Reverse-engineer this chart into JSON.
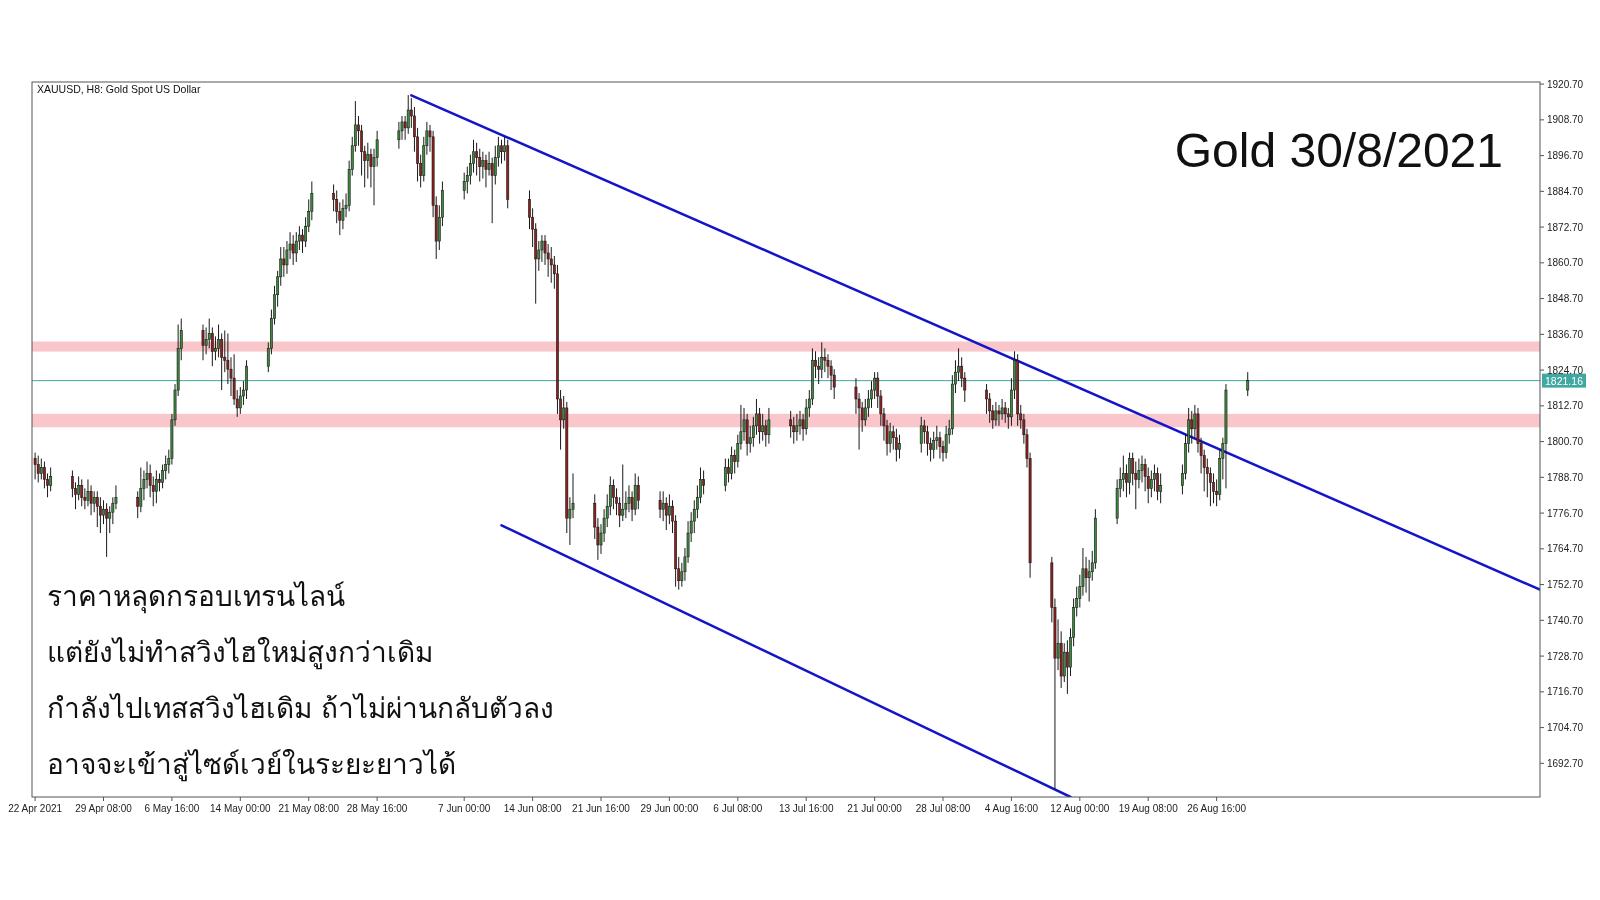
{
  "chart_data": {
    "type": "candlestick",
    "title": "Gold 30/8/2021",
    "subtitle": "XAUUSD, H8:  Gold Spot US Dollar",
    "annotations": [
      "ราคาหลุดกรอบเทรนไลน์",
      "แต่ยังไม่ทำสวิงไฮใหม่สูงกว่าเดิม",
      "กำลังไปเทสสวิงไฮเดิม ถ้าไม่ผ่านกลับตัวลง",
      "อาจจะเข้าสู่ไซด์เวย์ในระยะยาวได้"
    ],
    "x": [
      "2021-04-22T00:00",
      "2021-04-22T08:00",
      "2021-04-22T16:00",
      "2021-04-23T00:00",
      "2021-04-23T08:00",
      "2021-04-23T16:00",
      "2021-04-26T00:00",
      "2021-04-26T08:00",
      "2021-04-26T16:00",
      "2021-04-27T00:00",
      "2021-04-27T08:00",
      "2021-04-27T16:00",
      "2021-04-28T00:00",
      "2021-04-28T08:00",
      "2021-04-28T16:00",
      "2021-04-29T00:00",
      "2021-04-29T08:00",
      "2021-04-29T16:00",
      "2021-04-30T00:00",
      "2021-04-30T08:00",
      "2021-04-30T16:00",
      "2021-05-03T00:00",
      "2021-05-03T08:00",
      "2021-05-03T16:00",
      "2021-05-04T00:00",
      "2021-05-04T08:00",
      "2021-05-04T16:00",
      "2021-05-05T00:00",
      "2021-05-05T08:00",
      "2021-05-05T16:00",
      "2021-05-06T00:00",
      "2021-05-06T08:00",
      "2021-05-06T16:00",
      "2021-05-07T00:00",
      "2021-05-07T08:00",
      "2021-05-07T16:00",
      "2021-05-10T00:00",
      "2021-05-10T08:00",
      "2021-05-10T16:00",
      "2021-05-11T00:00",
      "2021-05-11T08:00",
      "2021-05-11T16:00",
      "2021-05-12T00:00",
      "2021-05-12T08:00",
      "2021-05-12T16:00",
      "2021-05-13T00:00",
      "2021-05-13T08:00",
      "2021-05-13T16:00",
      "2021-05-14T00:00",
      "2021-05-14T08:00",
      "2021-05-14T16:00",
      "2021-05-17T00:00",
      "2021-05-17T08:00",
      "2021-05-17T16:00",
      "2021-05-18T00:00",
      "2021-05-18T08:00",
      "2021-05-18T16:00",
      "2021-05-19T00:00",
      "2021-05-19T08:00",
      "2021-05-19T16:00",
      "2021-05-20T00:00",
      "2021-05-20T08:00",
      "2021-05-20T16:00",
      "2021-05-21T00:00",
      "2021-05-21T08:00",
      "2021-05-21T16:00",
      "2021-05-24T00:00",
      "2021-05-24T08:00",
      "2021-05-24T16:00",
      "2021-05-25T00:00",
      "2021-05-25T08:00",
      "2021-05-25T16:00",
      "2021-05-26T00:00",
      "2021-05-26T08:00",
      "2021-05-26T16:00",
      "2021-05-27T00:00",
      "2021-05-27T08:00",
      "2021-05-27T16:00",
      "2021-05-28T00:00",
      "2021-05-28T08:00",
      "2021-05-28T16:00",
      "2021-05-31T00:00",
      "2021-05-31T08:00",
      "2021-05-31T16:00",
      "2021-06-01T00:00",
      "2021-06-01T08:00",
      "2021-06-01T16:00",
      "2021-06-02T00:00",
      "2021-06-02T08:00",
      "2021-06-02T16:00",
      "2021-06-03T00:00",
      "2021-06-03T08:00",
      "2021-06-03T16:00",
      "2021-06-04T00:00",
      "2021-06-04T08:00",
      "2021-06-04T16:00",
      "2021-06-07T00:00",
      "2021-06-07T08:00",
      "2021-06-07T16:00",
      "2021-06-08T00:00",
      "2021-06-08T08:00",
      "2021-06-08T16:00",
      "2021-06-09T00:00",
      "2021-06-09T08:00",
      "2021-06-09T16:00",
      "2021-06-10T00:00",
      "2021-06-10T08:00",
      "2021-06-10T16:00",
      "2021-06-11T00:00",
      "2021-06-11T08:00",
      "2021-06-11T16:00",
      "2021-06-14T00:00",
      "2021-06-14T08:00",
      "2021-06-14T16:00",
      "2021-06-15T00:00",
      "2021-06-15T08:00",
      "2021-06-15T16:00",
      "2021-06-16T00:00",
      "2021-06-16T08:00",
      "2021-06-16T16:00",
      "2021-06-17T00:00",
      "2021-06-17T08:00",
      "2021-06-17T16:00",
      "2021-06-18T00:00",
      "2021-06-18T08:00",
      "2021-06-18T16:00",
      "2021-06-21T00:00",
      "2021-06-21T08:00",
      "2021-06-21T16:00",
      "2021-06-22T00:00",
      "2021-06-22T08:00",
      "2021-06-22T16:00",
      "2021-06-23T00:00",
      "2021-06-23T08:00",
      "2021-06-23T16:00",
      "2021-06-24T00:00",
      "2021-06-24T08:00",
      "2021-06-24T16:00",
      "2021-06-25T00:00",
      "2021-06-25T08:00",
      "2021-06-25T16:00",
      "2021-06-28T00:00",
      "2021-06-28T08:00",
      "2021-06-28T16:00",
      "2021-06-29T00:00",
      "2021-06-29T08:00",
      "2021-06-29T16:00",
      "2021-06-30T00:00",
      "2021-06-30T08:00",
      "2021-06-30T16:00",
      "2021-07-01T00:00",
      "2021-07-01T08:00",
      "2021-07-01T16:00",
      "2021-07-02T00:00",
      "2021-07-02T08:00",
      "2021-07-02T16:00",
      "2021-07-05T00:00",
      "2021-07-05T08:00",
      "2021-07-05T16:00",
      "2021-07-06T00:00",
      "2021-07-06T08:00",
      "2021-07-06T16:00",
      "2021-07-07T00:00",
      "2021-07-07T08:00",
      "2021-07-07T16:00",
      "2021-07-08T00:00",
      "2021-07-08T08:00",
      "2021-07-08T16:00",
      "2021-07-09T00:00",
      "2021-07-09T08:00",
      "2021-07-09T16:00",
      "2021-07-12T00:00",
      "2021-07-12T08:00",
      "2021-07-12T16:00",
      "2021-07-13T00:00",
      "2021-07-13T08:00",
      "2021-07-13T16:00",
      "2021-07-14T00:00",
      "2021-07-14T08:00",
      "2021-07-14T16:00",
      "2021-07-15T00:00",
      "2021-07-15T08:00",
      "2021-07-15T16:00",
      "2021-07-16T00:00",
      "2021-07-16T08:00",
      "2021-07-16T16:00",
      "2021-07-19T00:00",
      "2021-07-19T08:00",
      "2021-07-19T16:00",
      "2021-07-20T00:00",
      "2021-07-20T08:00",
      "2021-07-20T16:00",
      "2021-07-21T00:00",
      "2021-07-21T08:00",
      "2021-07-21T16:00",
      "2021-07-22T00:00",
      "2021-07-22T08:00",
      "2021-07-22T16:00",
      "2021-07-23T00:00",
      "2021-07-23T08:00",
      "2021-07-23T16:00",
      "2021-07-26T00:00",
      "2021-07-26T08:00",
      "2021-07-26T16:00",
      "2021-07-27T00:00",
      "2021-07-27T08:00",
      "2021-07-27T16:00",
      "2021-07-28T00:00",
      "2021-07-28T08:00",
      "2021-07-28T16:00",
      "2021-07-29T00:00",
      "2021-07-29T08:00",
      "2021-07-29T16:00",
      "2021-07-30T00:00",
      "2021-07-30T08:00",
      "2021-07-30T16:00",
      "2021-08-02T00:00",
      "2021-08-02T08:00",
      "2021-08-02T16:00",
      "2021-08-03T00:00",
      "2021-08-03T08:00",
      "2021-08-03T16:00",
      "2021-08-04T00:00",
      "2021-08-04T08:00",
      "2021-08-04T16:00",
      "2021-08-05T00:00",
      "2021-08-05T08:00",
      "2021-08-05T16:00",
      "2021-08-06T00:00",
      "2021-08-06T08:00",
      "2021-08-06T16:00",
      "2021-08-09T00:00",
      "2021-08-09T08:00",
      "2021-08-09T16:00",
      "2021-08-10T00:00",
      "2021-08-10T08:00",
      "2021-08-10T16:00",
      "2021-08-11T00:00",
      "2021-08-11T08:00",
      "2021-08-11T16:00",
      "2021-08-12T00:00",
      "2021-08-12T08:00",
      "2021-08-12T16:00",
      "2021-08-13T00:00",
      "2021-08-13T08:00",
      "2021-08-13T16:00",
      "2021-08-16T00:00",
      "2021-08-16T08:00",
      "2021-08-16T16:00",
      "2021-08-17T00:00",
      "2021-08-17T08:00",
      "2021-08-17T16:00",
      "2021-08-18T00:00",
      "2021-08-18T08:00",
      "2021-08-18T16:00",
      "2021-08-19T00:00",
      "2021-08-19T08:00",
      "2021-08-19T16:00",
      "2021-08-20T00:00",
      "2021-08-20T08:00",
      "2021-08-20T16:00",
      "2021-08-23T00:00",
      "2021-08-23T08:00",
      "2021-08-23T16:00",
      "2021-08-24T00:00",
      "2021-08-24T08:00",
      "2021-08-24T16:00",
      "2021-08-25T00:00",
      "2021-08-25T08:00",
      "2021-08-25T16:00",
      "2021-08-26T00:00",
      "2021-08-26T08:00",
      "2021-08-26T16:00",
      "2021-08-27T00:00",
      "2021-08-27T08:00",
      "2021-08-27T16:00",
      "2021-08-30T00:00"
    ],
    "ohlc": [
      [
        1795,
        1797,
        1788,
        1793
      ],
      [
        1793,
        1796,
        1787,
        1790
      ],
      [
        1790,
        1795,
        1788,
        1792
      ],
      [
        1792,
        1794,
        1785,
        1788
      ],
      [
        1788,
        1790,
        1782,
        1786
      ],
      [
        1786,
        1792,
        1784,
        1789
      ],
      [
        1789,
        1791,
        1782,
        1785
      ],
      [
        1785,
        1787,
        1778,
        1783
      ],
      [
        1783,
        1789,
        1781,
        1786
      ],
      [
        1786,
        1788,
        1779,
        1782
      ],
      [
        1782,
        1785,
        1778,
        1781
      ],
      [
        1781,
        1788,
        1779,
        1784
      ],
      [
        1784,
        1786,
        1776,
        1780
      ],
      [
        1780,
        1784,
        1777,
        1782
      ],
      [
        1782,
        1784,
        1772,
        1779
      ],
      [
        1779,
        1782,
        1770,
        1776
      ],
      [
        1776,
        1781,
        1773,
        1778
      ],
      [
        1778,
        1780,
        1762,
        1775
      ],
      [
        1775,
        1779,
        1770,
        1777
      ],
      [
        1777,
        1782,
        1773,
        1780
      ],
      [
        1780,
        1786,
        1778,
        1782
      ],
      [
        1782,
        1784,
        1775,
        1779
      ],
      [
        1779,
        1792,
        1777,
        1785
      ],
      [
        1785,
        1791,
        1781,
        1788
      ],
      [
        1788,
        1794,
        1785,
        1790
      ],
      [
        1790,
        1793,
        1782,
        1786
      ],
      [
        1786,
        1789,
        1779,
        1784
      ],
      [
        1784,
        1791,
        1780,
        1788
      ],
      [
        1788,
        1790,
        1784,
        1787
      ],
      [
        1787,
        1793,
        1785,
        1791
      ],
      [
        1791,
        1796,
        1788,
        1793
      ],
      [
        1793,
        1798,
        1790,
        1795
      ],
      [
        1795,
        1810,
        1793,
        1808
      ],
      [
        1808,
        1820,
        1806,
        1818
      ],
      [
        1818,
        1840,
        1816,
        1832
      ],
      [
        1832,
        1842,
        1828,
        1838
      ],
      [
        1838,
        1840,
        1828,
        1833
      ],
      [
        1833,
        1839,
        1830,
        1835
      ],
      [
        1835,
        1842,
        1832,
        1837
      ],
      [
        1837,
        1839,
        1826,
        1831
      ],
      [
        1831,
        1836,
        1828,
        1832
      ],
      [
        1832,
        1840,
        1829,
        1835
      ],
      [
        1835,
        1837,
        1818,
        1829
      ],
      [
        1829,
        1838,
        1824,
        1828
      ],
      [
        1828,
        1837,
        1820,
        1825
      ],
      [
        1825,
        1829,
        1816,
        1822
      ],
      [
        1822,
        1830,
        1813,
        1815
      ],
      [
        1815,
        1818,
        1809,
        1812
      ],
      [
        1812,
        1819,
        1810,
        1816
      ],
      [
        1816,
        1821,
        1813,
        1818
      ],
      [
        1818,
        1828,
        1815,
        1826
      ],
      [
        1826,
        1834,
        1824,
        1832
      ],
      [
        1832,
        1845,
        1830,
        1842
      ],
      [
        1842,
        1853,
        1840,
        1850
      ],
      [
        1850,
        1858,
        1846,
        1856
      ],
      [
        1856,
        1866,
        1853,
        1862
      ],
      [
        1862,
        1866,
        1856,
        1860
      ],
      [
        1860,
        1868,
        1857,
        1865
      ],
      [
        1865,
        1871,
        1862,
        1867
      ],
      [
        1867,
        1870,
        1860,
        1864
      ],
      [
        1864,
        1871,
        1861,
        1868
      ],
      [
        1868,
        1873,
        1865,
        1870
      ],
      [
        1870,
        1872,
        1864,
        1868
      ],
      [
        1868,
        1876,
        1866,
        1873
      ],
      [
        1873,
        1882,
        1871,
        1878
      ],
      [
        1878,
        1888,
        1875,
        1884
      ],
      [
        1884,
        1887,
        1878,
        1882
      ],
      [
        1882,
        1885,
        1874,
        1878
      ],
      [
        1878,
        1881,
        1870,
        1875
      ],
      [
        1875,
        1882,
        1872,
        1879
      ],
      [
        1879,
        1884,
        1876,
        1880
      ],
      [
        1880,
        1895,
        1878,
        1892
      ],
      [
        1892,
        1903,
        1890,
        1900
      ],
      [
        1900,
        1915,
        1898,
        1907
      ],
      [
        1907,
        1910,
        1900,
        1905
      ],
      [
        1905,
        1907,
        1890,
        1898
      ],
      [
        1898,
        1900,
        1886,
        1895
      ],
      [
        1895,
        1901,
        1889,
        1897
      ],
      [
        1897,
        1899,
        1886,
        1893
      ],
      [
        1893,
        1899,
        1880,
        1896
      ],
      [
        1896,
        1905,
        1893,
        1902
      ],
      [
        1902,
        1908,
        1899,
        1905
      ],
      [
        1905,
        1910,
        1902,
        1908
      ],
      [
        1908,
        1910,
        1902,
        1906
      ],
      [
        1906,
        1917,
        1904,
        1912
      ],
      [
        1912,
        1916,
        1906,
        1910
      ],
      [
        1910,
        1913,
        1898,
        1903
      ],
      [
        1903,
        1906,
        1888,
        1894
      ],
      [
        1894,
        1897,
        1886,
        1890
      ],
      [
        1890,
        1903,
        1888,
        1900
      ],
      [
        1900,
        1908,
        1897,
        1905
      ],
      [
        1905,
        1907,
        1898,
        1903
      ],
      [
        1903,
        1905,
        1876,
        1880
      ],
      [
        1880,
        1883,
        1862,
        1868
      ],
      [
        1868,
        1880,
        1865,
        1876
      ],
      [
        1876,
        1888,
        1873,
        1885
      ],
      [
        1885,
        1891,
        1882,
        1888
      ],
      [
        1888,
        1893,
        1884,
        1890
      ],
      [
        1890,
        1897,
        1887,
        1894
      ],
      [
        1894,
        1902,
        1891,
        1898
      ],
      [
        1898,
        1901,
        1890,
        1896
      ],
      [
        1896,
        1899,
        1888,
        1893
      ],
      [
        1893,
        1898,
        1889,
        1895
      ],
      [
        1895,
        1897,
        1886,
        1892
      ],
      [
        1892,
        1898,
        1890,
        1894
      ],
      [
        1894,
        1896,
        1874,
        1890
      ],
      [
        1890,
        1900,
        1887,
        1896
      ],
      [
        1896,
        1903,
        1893,
        1900
      ],
      [
        1900,
        1902,
        1894,
        1898
      ],
      [
        1898,
        1903,
        1895,
        1900
      ],
      [
        1900,
        1902,
        1879,
        1882
      ],
      [
        1882,
        1885,
        1872,
        1876
      ],
      [
        1876,
        1879,
        1866,
        1872
      ],
      [
        1872,
        1874,
        1847,
        1862
      ],
      [
        1862,
        1868,
        1858,
        1865
      ],
      [
        1865,
        1870,
        1861,
        1868
      ],
      [
        1868,
        1870,
        1860,
        1864
      ],
      [
        1864,
        1867,
        1856,
        1862
      ],
      [
        1862,
        1866,
        1854,
        1860
      ],
      [
        1860,
        1863,
        1852,
        1857
      ],
      [
        1857,
        1860,
        1810,
        1815
      ],
      [
        1815,
        1818,
        1798,
        1808
      ],
      [
        1808,
        1816,
        1805,
        1812
      ],
      [
        1812,
        1814,
        1770,
        1775
      ],
      [
        1775,
        1782,
        1766,
        1778
      ],
      [
        1778,
        1790,
        1775,
        1780
      ],
      [
        1780,
        1783,
        1768,
        1772
      ],
      [
        1772,
        1775,
        1761,
        1766
      ],
      [
        1766,
        1773,
        1763,
        1770
      ],
      [
        1770,
        1778,
        1767,
        1775
      ],
      [
        1775,
        1783,
        1772,
        1779
      ],
      [
        1779,
        1789,
        1776,
        1786
      ],
      [
        1786,
        1788,
        1778,
        1782
      ],
      [
        1782,
        1785,
        1776,
        1780
      ],
      [
        1780,
        1782,
        1772,
        1776
      ],
      [
        1776,
        1793,
        1774,
        1778
      ],
      [
        1778,
        1784,
        1775,
        1780
      ],
      [
        1780,
        1786,
        1777,
        1782
      ],
      [
        1782,
        1784,
        1774,
        1778
      ],
      [
        1778,
        1790,
        1776,
        1786
      ],
      [
        1786,
        1789,
        1778,
        1781
      ],
      [
        1781,
        1784,
        1775,
        1778
      ],
      [
        1778,
        1784,
        1774,
        1780
      ],
      [
        1780,
        1782,
        1771,
        1776
      ],
      [
        1776,
        1783,
        1773,
        1779
      ],
      [
        1779,
        1781,
        1770,
        1774
      ],
      [
        1774,
        1776,
        1752,
        1758
      ],
      [
        1758,
        1762,
        1751,
        1754
      ],
      [
        1754,
        1760,
        1752,
        1757
      ],
      [
        1757,
        1765,
        1754,
        1762
      ],
      [
        1762,
        1774,
        1760,
        1770
      ],
      [
        1770,
        1777,
        1767,
        1774
      ],
      [
        1774,
        1781,
        1770,
        1778
      ],
      [
        1778,
        1786,
        1775,
        1782
      ],
      [
        1782,
        1792,
        1780,
        1788
      ],
      [
        1788,
        1791,
        1783,
        1786
      ],
      [
        1786,
        1795,
        1784,
        1792
      ],
      [
        1792,
        1795,
        1787,
        1790
      ],
      [
        1790,
        1799,
        1788,
        1796
      ],
      [
        1796,
        1798,
        1790,
        1794
      ],
      [
        1794,
        1803,
        1792,
        1800
      ],
      [
        1800,
        1813,
        1798,
        1804
      ],
      [
        1804,
        1812,
        1801,
        1808
      ],
      [
        1808,
        1810,
        1796,
        1800
      ],
      [
        1800,
        1806,
        1797,
        1802
      ],
      [
        1802,
        1809,
        1799,
        1806
      ],
      [
        1806,
        1815,
        1803,
        1810
      ],
      [
        1810,
        1812,
        1800,
        1804
      ],
      [
        1804,
        1810,
        1801,
        1806
      ],
      [
        1806,
        1808,
        1799,
        1803
      ],
      [
        1803,
        1812,
        1800,
        1808
      ],
      [
        1808,
        1811,
        1802,
        1806
      ],
      [
        1806,
        1809,
        1800,
        1804
      ],
      [
        1804,
        1810,
        1801,
        1806
      ],
      [
        1806,
        1811,
        1803,
        1808
      ],
      [
        1808,
        1810,
        1801,
        1805
      ],
      [
        1805,
        1815,
        1803,
        1812
      ],
      [
        1812,
        1818,
        1809,
        1815
      ],
      [
        1815,
        1832,
        1813,
        1828
      ],
      [
        1828,
        1831,
        1822,
        1826
      ],
      [
        1826,
        1829,
        1820,
        1825
      ],
      [
        1825,
        1834,
        1822,
        1829
      ],
      [
        1829,
        1832,
        1824,
        1828
      ],
      [
        1828,
        1830,
        1822,
        1826
      ],
      [
        1826,
        1828,
        1818,
        1823
      ],
      [
        1823,
        1825,
        1815,
        1819
      ],
      [
        1819,
        1822,
        1810,
        1815
      ],
      [
        1815,
        1817,
        1798,
        1812
      ],
      [
        1812,
        1814,
        1804,
        1808
      ],
      [
        1808,
        1815,
        1806,
        1812
      ],
      [
        1812,
        1818,
        1809,
        1815
      ],
      [
        1815,
        1821,
        1812,
        1818
      ],
      [
        1818,
        1824,
        1815,
        1822
      ],
      [
        1822,
        1824,
        1812,
        1816
      ],
      [
        1816,
        1818,
        1806,
        1810
      ],
      [
        1810,
        1812,
        1801,
        1806
      ],
      [
        1806,
        1808,
        1796,
        1800
      ],
      [
        1800,
        1807,
        1797,
        1804
      ],
      [
        1804,
        1806,
        1798,
        1802
      ],
      [
        1802,
        1805,
        1794,
        1798
      ],
      [
        1798,
        1803,
        1795,
        1800
      ],
      [
        1800,
        1809,
        1797,
        1806
      ],
      [
        1806,
        1808,
        1800,
        1804
      ],
      [
        1804,
        1806,
        1796,
        1800
      ],
      [
        1800,
        1802,
        1794,
        1798
      ],
      [
        1798,
        1804,
        1795,
        1801
      ],
      [
        1801,
        1806,
        1798,
        1802
      ],
      [
        1802,
        1804,
        1795,
        1799
      ],
      [
        1799,
        1801,
        1794,
        1797
      ],
      [
        1797,
        1806,
        1795,
        1803
      ],
      [
        1803,
        1808,
        1800,
        1805
      ],
      [
        1805,
        1823,
        1803,
        1820
      ],
      [
        1820,
        1828,
        1817,
        1824
      ],
      [
        1824,
        1832,
        1821,
        1826
      ],
      [
        1826,
        1829,
        1819,
        1822
      ],
      [
        1822,
        1824,
        1814,
        1818
      ],
      [
        1818,
        1820,
        1810,
        1815
      ],
      [
        1815,
        1817,
        1807,
        1811
      ],
      [
        1811,
        1813,
        1805,
        1808
      ],
      [
        1808,
        1814,
        1806,
        1811
      ],
      [
        1811,
        1813,
        1806,
        1810
      ],
      [
        1810,
        1815,
        1808,
        1812
      ],
      [
        1812,
        1814,
        1807,
        1810
      ],
      [
        1810,
        1812,
        1805,
        1809
      ],
      [
        1809,
        1822,
        1806,
        1818
      ],
      [
        1818,
        1831,
        1815,
        1828
      ],
      [
        1828,
        1830,
        1806,
        1810
      ],
      [
        1810,
        1813,
        1805,
        1808
      ],
      [
        1808,
        1810,
        1800,
        1803
      ],
      [
        1803,
        1805,
        1792,
        1795
      ],
      [
        1795,
        1797,
        1755,
        1760
      ],
      [
        1760,
        1762,
        1740,
        1745
      ],
      [
        1745,
        1748,
        1684,
        1728
      ],
      [
        1728,
        1741,
        1724,
        1733
      ],
      [
        1733,
        1737,
        1718,
        1722
      ],
      [
        1722,
        1733,
        1720,
        1730
      ],
      [
        1730,
        1734,
        1716,
        1725
      ],
      [
        1725,
        1738,
        1722,
        1735
      ],
      [
        1735,
        1748,
        1732,
        1745
      ],
      [
        1745,
        1752,
        1742,
        1748
      ],
      [
        1748,
        1756,
        1745,
        1752
      ],
      [
        1752,
        1765,
        1749,
        1758
      ],
      [
        1758,
        1762,
        1750,
        1755
      ],
      [
        1755,
        1761,
        1747,
        1757
      ],
      [
        1757,
        1764,
        1754,
        1760
      ],
      [
        1760,
        1778,
        1758,
        1775
      ],
      [
        1775,
        1788,
        1773,
        1785
      ],
      [
        1785,
        1792,
        1782,
        1788
      ],
      [
        1788,
        1796,
        1784,
        1790
      ],
      [
        1790,
        1793,
        1782,
        1787
      ],
      [
        1787,
        1797,
        1783,
        1795
      ],
      [
        1795,
        1797,
        1786,
        1790
      ],
      [
        1790,
        1794,
        1778,
        1788
      ],
      [
        1788,
        1795,
        1785,
        1791
      ],
      [
        1791,
        1796,
        1787,
        1793
      ],
      [
        1793,
        1795,
        1784,
        1789
      ],
      [
        1789,
        1792,
        1780,
        1785
      ],
      [
        1785,
        1791,
        1782,
        1788
      ],
      [
        1788,
        1793,
        1784,
        1790
      ],
      [
        1790,
        1792,
        1781,
        1784
      ],
      [
        1784,
        1790,
        1780,
        1786
      ],
      [
        1786,
        1793,
        1783,
        1790
      ],
      [
        1790,
        1803,
        1788,
        1800
      ],
      [
        1800,
        1812,
        1797,
        1808
      ],
      [
        1808,
        1811,
        1800,
        1805
      ],
      [
        1805,
        1813,
        1802,
        1810
      ],
      [
        1810,
        1812,
        1797,
        1800
      ],
      [
        1800,
        1802,
        1790,
        1796
      ],
      [
        1796,
        1798,
        1784,
        1792
      ],
      [
        1792,
        1795,
        1782,
        1790
      ],
      [
        1790,
        1792,
        1779,
        1787
      ],
      [
        1787,
        1790,
        1780,
        1784
      ],
      [
        1784,
        1788,
        1779,
        1783
      ],
      [
        1783,
        1798,
        1781,
        1795
      ],
      [
        1795,
        1802,
        1788,
        1800
      ],
      [
        1800,
        1820,
        1785,
        1818
      ],
      [
        1818,
        1824,
        1816,
        1821.16
      ]
    ],
    "series": [
      {
        "type": "line",
        "color": "#1414c8",
        "x": [
          "2021-06-01T08:00",
          "2021-09-30T08:00"
        ],
        "values": [
          1916.9,
          1751.0
        ]
      },
      {
        "type": "line",
        "color": "#1414c8",
        "x": [
          "2021-06-11T00:00",
          "2021-08-11T00:00"
        ],
        "values": [
          1772.6,
          1681.4
        ]
      }
    ],
    "ref_lines": [
      {
        "axis": "y",
        "value": 1821.16,
        "label": "1821.16",
        "color": "#40a8a0"
      }
    ],
    "bands": [
      {
        "axis": "y",
        "from": 1830.9,
        "to": 1834.3,
        "color": "#f9c6cb"
      },
      {
        "axis": "y",
        "from": 1805.5,
        "to": 1810.0,
        "color": "#f9c6cb"
      }
    ],
    "xlim": [
      "2021-04-21T16:00",
      "2021-09-30T08:00"
    ],
    "xticks": [
      {
        "value": "2021-04-22T00:00",
        "label": "22 Apr 2021"
      },
      {
        "value": "2021-04-29T08:00",
        "label": "29 Apr 08:00"
      },
      {
        "value": "2021-05-06T16:00",
        "label": "6 May 16:00"
      },
      {
        "value": "2021-05-14T00:00",
        "label": "14 May 00:00"
      },
      {
        "value": "2021-05-21T08:00",
        "label": "21 May 08:00"
      },
      {
        "value": "2021-05-28T16:00",
        "label": "28 May 16:00"
      },
      {
        "value": "2021-06-07T00:00",
        "label": "7 Jun 00:00"
      },
      {
        "value": "2021-06-14T08:00",
        "label": "14 Jun 08:00"
      },
      {
        "value": "2021-06-21T16:00",
        "label": "21 Jun 16:00"
      },
      {
        "value": "2021-06-29T00:00",
        "label": "29 Jun 00:00"
      },
      {
        "value": "2021-07-06T08:00",
        "label": "6 Jul 08:00"
      },
      {
        "value": "2021-07-13T16:00",
        "label": "13 Jul 16:00"
      },
      {
        "value": "2021-07-21T00:00",
        "label": "21 Jul 00:00"
      },
      {
        "value": "2021-07-28T08:00",
        "label": "28 Jul 08:00"
      },
      {
        "value": "2021-08-04T16:00",
        "label": "4 Aug 16:00"
      },
      {
        "value": "2021-08-12T00:00",
        "label": "12 Aug 00:00"
      },
      {
        "value": "2021-08-19T08:00",
        "label": "19 Aug 08:00"
      },
      {
        "value": "2021-08-26T16:00",
        "label": "26 Aug 16:00"
      }
    ],
    "ylim": [
      1681.4,
      1921.4
    ],
    "yticks": [
      {
        "value": 1692.7,
        "label": "1692.70"
      },
      {
        "value": 1704.7,
        "label": "1704.70"
      },
      {
        "value": 1716.7,
        "label": "1716.70"
      },
      {
        "value": 1728.7,
        "label": "1728.70"
      },
      {
        "value": 1740.7,
        "label": "1740.70"
      },
      {
        "value": 1752.7,
        "label": "1752.70"
      },
      {
        "value": 1764.7,
        "label": "1764.70"
      },
      {
        "value": 1776.7,
        "label": "1776.70"
      },
      {
        "value": 1788.7,
        "label": "1788.70"
      },
      {
        "value": 1800.7,
        "label": "1800.70"
      },
      {
        "value": 1812.7,
        "label": "1812.70"
      },
      {
        "value": 1824.7,
        "label": "1824.70"
      },
      {
        "value": 1836.7,
        "label": "1836.70"
      },
      {
        "value": 1848.7,
        "label": "1848.70"
      },
      {
        "value": 1860.7,
        "label": "1860.70"
      },
      {
        "value": 1872.7,
        "label": "1872.70"
      },
      {
        "value": 1884.7,
        "label": "1884.70"
      },
      {
        "value": 1896.7,
        "label": "1896.70"
      },
      {
        "value": 1908.7,
        "label": "1908.70"
      },
      {
        "value": 1920.7,
        "label": "1920.70"
      }
    ],
    "grid": false
  }
}
